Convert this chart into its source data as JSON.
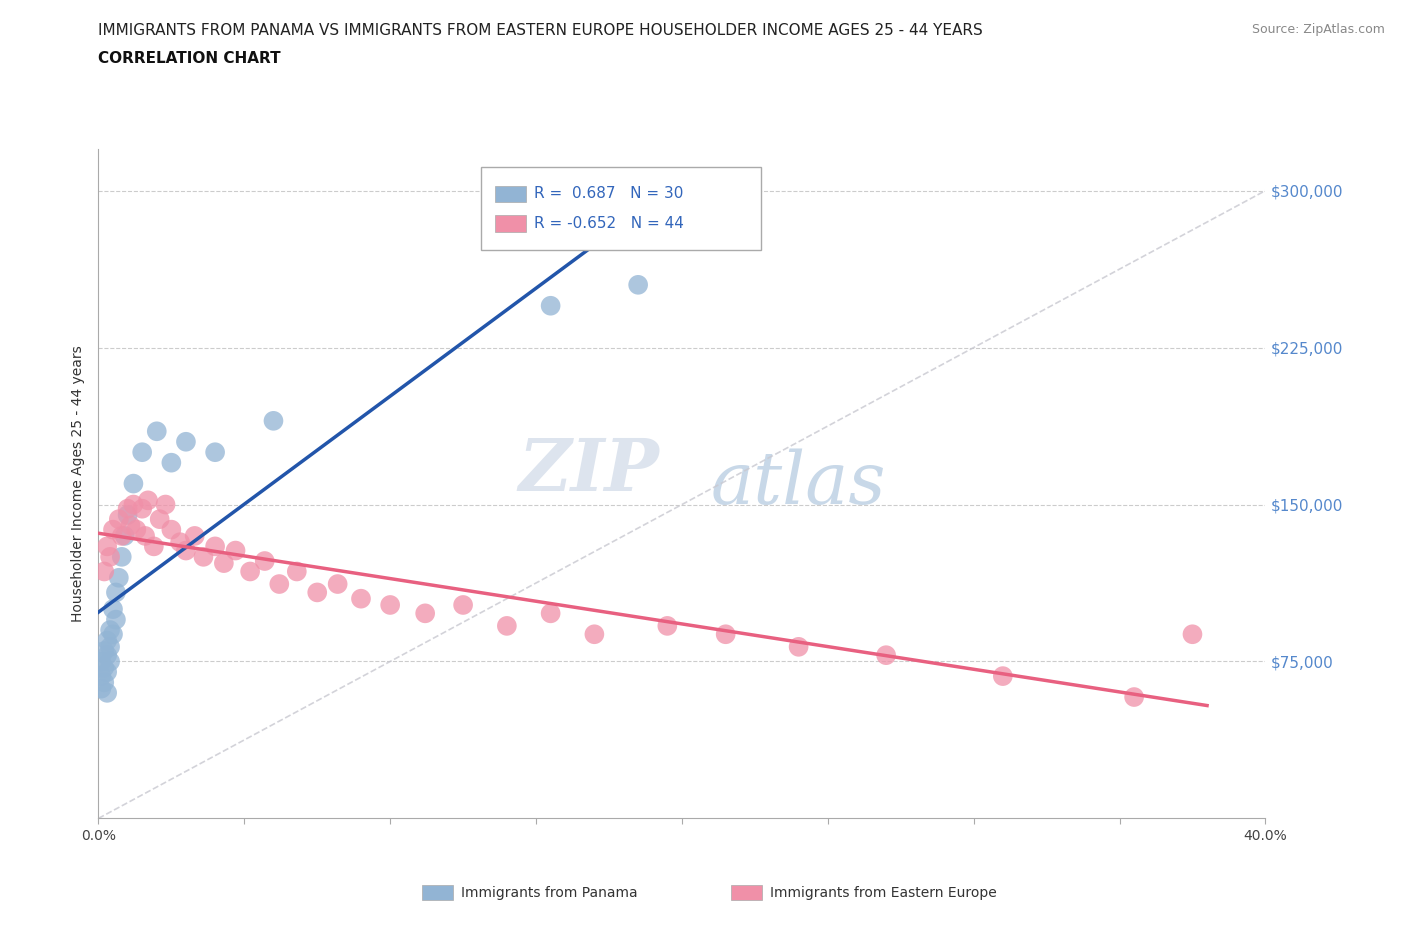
{
  "title_line1": "IMMIGRANTS FROM PANAMA VS IMMIGRANTS FROM EASTERN EUROPE HOUSEHOLDER INCOME AGES 25 - 44 YEARS",
  "title_line2": "CORRELATION CHART",
  "source": "Source: ZipAtlas.com",
  "ylabel": "Householder Income Ages 25 - 44 years",
  "xlim": [
    0.0,
    0.4
  ],
  "ylim": [
    0,
    320000
  ],
  "yticks": [
    0,
    75000,
    150000,
    225000,
    300000
  ],
  "yticklabels": [
    "",
    "$75,000",
    "$150,000",
    "$225,000",
    "$300,000"
  ],
  "panama_R": 0.687,
  "panama_N": 30,
  "eastern_europe_R": -0.652,
  "eastern_europe_N": 44,
  "panama_color": "#92b4d4",
  "eastern_europe_color": "#f090a8",
  "panama_line_color": "#2255aa",
  "eastern_europe_line_color": "#e86080",
  "diag_line_color": "#c8c8d0",
  "watermark_zip": "ZIP",
  "watermark_atlas": "atlas",
  "panama_scatter_x": [
    0.001,
    0.001,
    0.001,
    0.002,
    0.002,
    0.002,
    0.003,
    0.003,
    0.003,
    0.003,
    0.004,
    0.004,
    0.004,
    0.005,
    0.005,
    0.006,
    0.006,
    0.007,
    0.008,
    0.009,
    0.01,
    0.012,
    0.015,
    0.02,
    0.025,
    0.03,
    0.04,
    0.06,
    0.155,
    0.185
  ],
  "panama_scatter_y": [
    75000,
    68000,
    62000,
    80000,
    72000,
    65000,
    85000,
    78000,
    70000,
    60000,
    90000,
    82000,
    75000,
    100000,
    88000,
    108000,
    95000,
    115000,
    125000,
    135000,
    145000,
    160000,
    175000,
    185000,
    170000,
    180000,
    175000,
    190000,
    245000,
    255000
  ],
  "eastern_europe_scatter_x": [
    0.002,
    0.003,
    0.004,
    0.005,
    0.007,
    0.008,
    0.01,
    0.011,
    0.012,
    0.013,
    0.015,
    0.016,
    0.017,
    0.019,
    0.021,
    0.023,
    0.025,
    0.028,
    0.03,
    0.033,
    0.036,
    0.04,
    0.043,
    0.047,
    0.052,
    0.057,
    0.062,
    0.068,
    0.075,
    0.082,
    0.09,
    0.1,
    0.112,
    0.125,
    0.14,
    0.155,
    0.17,
    0.195,
    0.215,
    0.24,
    0.27,
    0.31,
    0.355,
    0.375
  ],
  "eastern_europe_scatter_y": [
    118000,
    130000,
    125000,
    138000,
    143000,
    135000,
    148000,
    140000,
    150000,
    138000,
    148000,
    135000,
    152000,
    130000,
    143000,
    150000,
    138000,
    132000,
    128000,
    135000,
    125000,
    130000,
    122000,
    128000,
    118000,
    123000,
    112000,
    118000,
    108000,
    112000,
    105000,
    102000,
    98000,
    102000,
    92000,
    98000,
    88000,
    92000,
    88000,
    82000,
    78000,
    68000,
    58000,
    88000
  ]
}
